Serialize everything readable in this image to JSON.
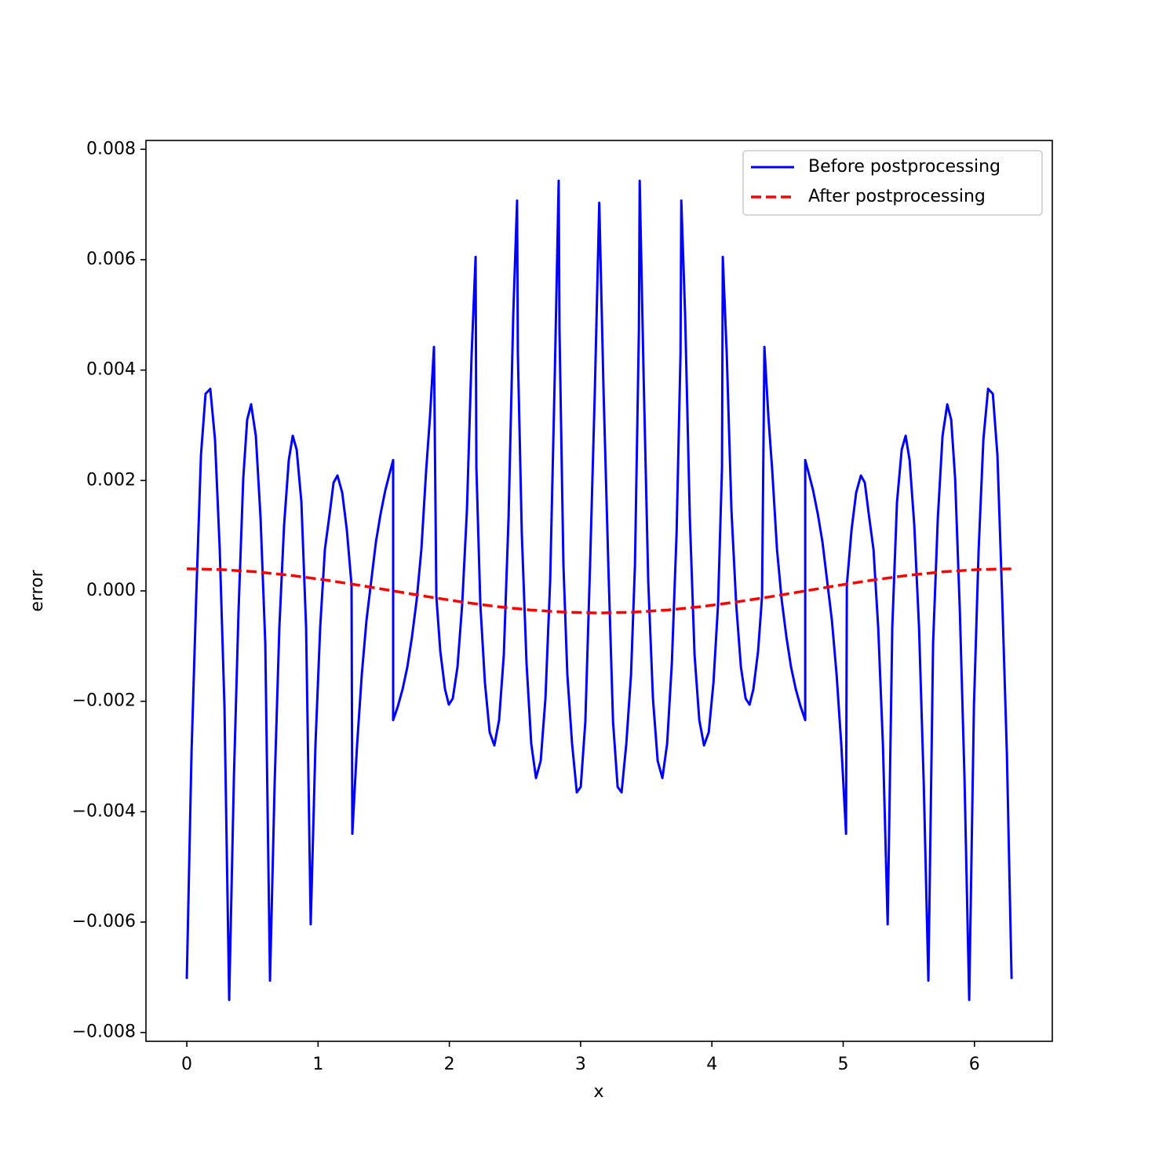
{
  "chart_data": {
    "type": "line",
    "xlabel": "x",
    "ylabel": "error",
    "xlim": [
      -0.311,
      6.593
    ],
    "ylim": [
      -0.00816,
      0.00816
    ],
    "xticks": [
      0,
      1,
      2,
      3,
      4,
      5,
      6
    ],
    "yticks": [
      {
        "value": -0.008,
        "label": "−0.008"
      },
      {
        "value": -0.006,
        "label": "−0.006"
      },
      {
        "value": -0.004,
        "label": "−0.004"
      },
      {
        "value": -0.002,
        "label": "−0.002"
      },
      {
        "value": 0,
        "label": "0.000"
      },
      0.002,
      0.004,
      0.006,
      0.008
    ],
    "legend": "upper right",
    "grid": false,
    "series": [
      {
        "name": "Before postprocessing",
        "color": "#0000ff",
        "dash": "solid",
        "x": [
          0,
          0.036,
          0.072,
          0.108,
          0.143,
          0.179,
          0.215,
          0.251,
          0.287,
          0.323,
          0.359,
          0.394,
          0.43,
          0.46,
          0.49,
          0.526,
          0.562,
          0.598,
          0.634,
          0.669,
          0.705,
          0.741,
          0.777,
          0.807,
          0.837,
          0.873,
          0.909,
          0.944,
          0.98,
          1.016,
          1.052,
          1.088,
          1.118,
          1.148,
          1.184,
          1.219,
          1.255,
          1.261,
          1.297,
          1.333,
          1.369,
          1.405,
          1.441,
          1.476,
          1.512,
          1.542,
          1.572,
          1.572,
          1.608,
          1.644,
          1.68,
          1.715,
          1.751,
          1.787,
          1.823,
          1.853,
          1.883,
          1.901,
          1.931,
          1.967,
          1.996,
          2.026,
          2.062,
          2.098,
          2.134,
          2.17,
          2.2,
          2.206,
          2.236,
          2.271,
          2.307,
          2.343,
          2.379,
          2.415,
          2.451,
          2.487,
          2.516,
          2.522,
          2.552,
          2.588,
          2.624,
          2.66,
          2.696,
          2.732,
          2.768,
          2.803,
          2.833,
          2.839,
          2.869,
          2.899,
          2.935,
          2.971,
          3.001,
          3.036,
          3.072,
          3.108,
          3.142,
          3.175,
          3.211,
          3.247,
          3.282,
          3.312,
          3.348,
          3.384,
          3.414,
          3.444,
          3.45,
          3.48,
          3.515,
          3.551,
          3.587,
          3.623,
          3.659,
          3.695,
          3.731,
          3.761,
          3.767,
          3.796,
          3.832,
          3.868,
          3.904,
          3.94,
          3.976,
          4.012,
          4.047,
          4.077,
          4.083,
          4.113,
          4.149,
          4.185,
          4.221,
          4.257,
          4.287,
          4.316,
          4.352,
          4.382,
          4.4,
          4.43,
          4.46,
          4.496,
          4.532,
          4.568,
          4.603,
          4.639,
          4.675,
          4.711,
          4.711,
          4.741,
          4.771,
          4.807,
          4.842,
          4.878,
          4.914,
          4.95,
          4.986,
          5.022,
          5.028,
          5.064,
          5.099,
          5.135,
          5.165,
          5.195,
          5.231,
          5.267,
          5.303,
          5.339,
          5.374,
          5.41,
          5.446,
          5.476,
          5.506,
          5.542,
          5.578,
          5.614,
          5.649,
          5.685,
          5.721,
          5.757,
          5.793,
          5.823,
          5.853,
          5.889,
          5.924,
          5.96,
          5.996,
          6.032,
          6.068,
          6.104,
          6.14,
          6.175,
          6.211,
          6.247,
          6.283
        ],
        "values": [
          -0.00703,
          -0.00294,
          -0.0001,
          0.00246,
          0.00357,
          0.00366,
          0.00274,
          0.00075,
          -0.00209,
          -0.00741,
          -0.00337,
          -0.00038,
          0.00203,
          0.0031,
          0.00338,
          0.00281,
          0.00132,
          -0.00095,
          -0.00706,
          -0.00351,
          -0.00067,
          0.00118,
          0.00237,
          0.00281,
          0.00256,
          0.00161,
          -0.00067,
          -0.00604,
          -0.0028,
          -0.00067,
          0.00075,
          0.00139,
          0.00196,
          0.00209,
          0.00178,
          0.00111,
          0.00011,
          -0.0044,
          -0.0028,
          -0.00152,
          -0.00053,
          0.00018,
          0.00089,
          0.00139,
          0.00182,
          0.0021,
          0.00237,
          -0.00234,
          -0.00209,
          -0.00178,
          -0.00138,
          -0.00084,
          -0.00017,
          0.00075,
          0.00217,
          0.00317,
          0.00442,
          -0.0001,
          -0.00109,
          -0.00178,
          -0.00206,
          -0.00195,
          -0.00138,
          -0.00024,
          0.00146,
          0.0043,
          0.00605,
          0.00224,
          -0.00024,
          -0.00166,
          -0.00256,
          -0.0028,
          -0.00234,
          -0.00116,
          0.00132,
          0.00501,
          0.00707,
          0.0043,
          0.00104,
          -0.00131,
          -0.00277,
          -0.00339,
          -0.00308,
          -0.00195,
          0.00018,
          0.00388,
          0.00743,
          0.00473,
          0.00047,
          -0.00152,
          -0.00277,
          -0.00365,
          -0.00355,
          -0.00237,
          0.00047,
          0.00359,
          0.00703,
          0.00359,
          0.00047,
          -0.00237,
          -0.00355,
          -0.00365,
          -0.00277,
          -0.00152,
          0.00047,
          0.00473,
          0.00743,
          0.00388,
          0.00018,
          -0.00195,
          -0.00308,
          -0.00339,
          -0.00277,
          -0.00131,
          0.00104,
          0.0043,
          0.00707,
          0.00501,
          0.00132,
          -0.00116,
          -0.00234,
          -0.0028,
          -0.00256,
          -0.00166,
          -0.00024,
          0.00224,
          0.00605,
          0.0043,
          0.00146,
          -0.00024,
          -0.00138,
          -0.00195,
          -0.00206,
          -0.00178,
          -0.00109,
          -0.0001,
          0.00442,
          0.00317,
          0.00217,
          0.00075,
          -0.00017,
          -0.00084,
          -0.00138,
          -0.00178,
          -0.00209,
          -0.00234,
          0.00237,
          0.0021,
          0.00182,
          0.00139,
          0.00089,
          0.00018,
          -0.00053,
          -0.00152,
          -0.0028,
          -0.0044,
          0.00011,
          0.00111,
          0.00178,
          0.00209,
          0.00196,
          0.00139,
          0.00075,
          -0.00067,
          -0.0028,
          -0.00604,
          -0.00067,
          0.00161,
          0.00256,
          0.00281,
          0.00237,
          0.00118,
          -0.00067,
          -0.00351,
          -0.00706,
          -0.00095,
          0.00132,
          0.00281,
          0.00338,
          0.0031,
          0.00203,
          -0.00038,
          -0.00337,
          -0.00741,
          -0.00209,
          0.00075,
          0.00274,
          0.00366,
          0.00357,
          0.00246,
          -0.0001,
          -0.00294,
          -0.00703
        ]
      },
      {
        "name": "After postprocessing",
        "color": "#ff0000",
        "dash": "dashed",
        "x": [
          0,
          0.262,
          0.524,
          0.785,
          1.047,
          1.309,
          1.571,
          1.833,
          2.094,
          2.356,
          2.618,
          2.88,
          3.142,
          3.403,
          3.665,
          3.927,
          4.189,
          4.451,
          4.712,
          4.974,
          5.236,
          5.498,
          5.76,
          6.021,
          6.283
        ],
        "values": [
          0.0004,
          0.000386,
          0.000346,
          0.000283,
          0.0002,
          0.000104,
          0,
          -0.000104,
          -0.0002,
          -0.000283,
          -0.000346,
          -0.000386,
          -0.0004,
          -0.000386,
          -0.000346,
          -0.000283,
          -0.0002,
          -0.000104,
          0,
          0.000104,
          0.0002,
          0.000283,
          0.000346,
          0.000386,
          0.0004
        ]
      }
    ]
  }
}
